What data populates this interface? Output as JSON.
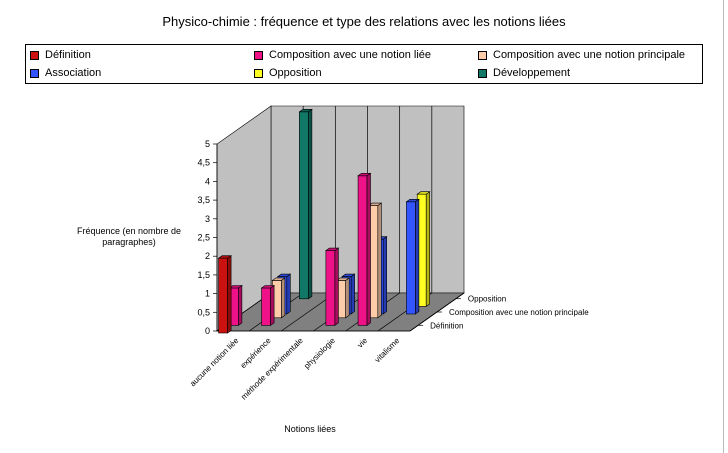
{
  "chart_data": {
    "type": "bar",
    "title": "Physico-chimie : fréquence et type des relations avec les notions liées",
    "xlabel": "Notions liées",
    "ylabel": "Fréquence (en nombre de paragraphes)",
    "ylim": [
      0,
      5
    ],
    "yticks": [
      "0",
      "0,5",
      "1",
      "1,5",
      "2",
      "2,5",
      "3",
      "3,5",
      "4",
      "4,5",
      "5"
    ],
    "categories": [
      "aucune notion liée",
      "expérience",
      "méthode expérimentale",
      "physiologie",
      "vie",
      "vitalisme"
    ],
    "depth_labels": [
      "Définition",
      "Composition avec une notion principale",
      "Opposition"
    ],
    "legend_placement": "top",
    "grid": true,
    "series": [
      {
        "name": "Définition",
        "color": "#cc1111",
        "values": [
          2,
          0,
          0,
          0,
          0,
          0
        ]
      },
      {
        "name": "Composition avec une notion liée",
        "color": "#ee1188",
        "values": [
          1,
          1,
          0,
          2,
          4,
          0
        ]
      },
      {
        "name": "Composition avec une notion principale",
        "color": "#ffccaa",
        "values": [
          0,
          1,
          0,
          1,
          3,
          0
        ]
      },
      {
        "name": "Association",
        "color": "#3355ff",
        "values": [
          0,
          1,
          0,
          1,
          2,
          3
        ]
      },
      {
        "name": "Opposition",
        "color": "#ffff22",
        "values": [
          0,
          0,
          0,
          0,
          0,
          3
        ]
      },
      {
        "name": "Développement",
        "color": "#117766",
        "values": [
          0,
          5,
          0,
          0,
          0,
          0
        ]
      }
    ]
  }
}
